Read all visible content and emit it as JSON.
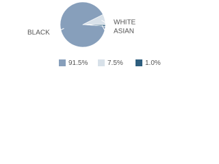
{
  "chart_data": {
    "type": "pie",
    "categories": [
      "BLACK",
      "WHITE",
      "ASIAN"
    ],
    "values": [
      91.5,
      7.5,
      1.0
    ],
    "value_labels": [
      "91.5%",
      "7.5%",
      "1.0%"
    ],
    "colors": [
      "#879fbb",
      "#d8e1e9",
      "#2e5e7e"
    ]
  }
}
